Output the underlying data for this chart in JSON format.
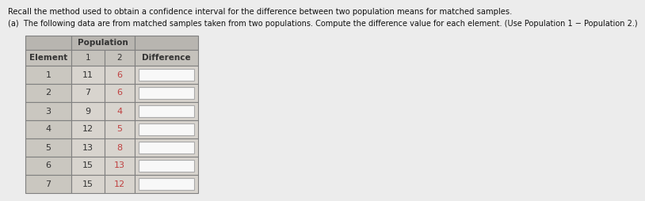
{
  "title_line1": "Recall the method used to obtain a confidence interval for the difference between two population means for matched samples.",
  "title_line2": "(a)  The following data are from matched samples taken from two populations. Compute the difference value for each element. (Use Population 1 − Population 2.)",
  "elements": [
    1,
    2,
    3,
    4,
    5,
    6,
    7
  ],
  "pop1": [
    11,
    7,
    9,
    12,
    13,
    15,
    15
  ],
  "pop2": [
    6,
    6,
    4,
    5,
    8,
    13,
    12
  ],
  "header_population": "Population",
  "header_element": "Element",
  "header_1": "1",
  "header_2": "2",
  "header_difference": "Difference",
  "fig_bg": "#ececec",
  "header_row1_bg": "#b8b5b0",
  "header_row2_bg": "#c5c2bc",
  "data_row_bg": "#d8d4ce",
  "diff_col_bg": "#d8d4ce",
  "diff_box_bg": "#f5f4f2",
  "pop2_color": "#c04040",
  "text_color": "#333333",
  "border_color": "#808080"
}
